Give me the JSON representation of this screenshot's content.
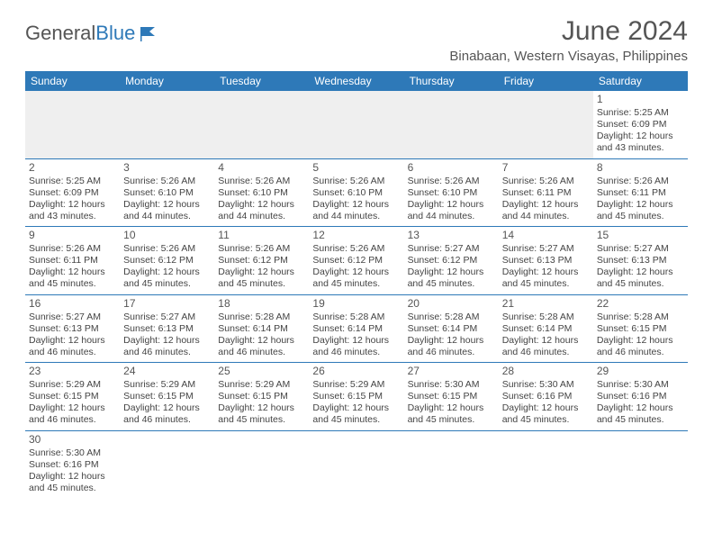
{
  "logo": {
    "text1": "General",
    "text2": "Blue"
  },
  "header": {
    "title": "June 2024",
    "subtitle": "Binabaan, Western Visayas, Philippines"
  },
  "colors": {
    "header_bg": "#2e79b8",
    "header_fg": "#ffffff",
    "text": "#444444",
    "title": "#555555",
    "empty_bg": "#efefef",
    "border": "#2e79b8"
  },
  "weekdays": [
    "Sunday",
    "Monday",
    "Tuesday",
    "Wednesday",
    "Thursday",
    "Friday",
    "Saturday"
  ],
  "cells": [
    [
      null,
      null,
      null,
      null,
      null,
      null,
      {
        "n": "1",
        "sr": "Sunrise: 5:25 AM",
        "ss": "Sunset: 6:09 PM",
        "d1": "Daylight: 12 hours",
        "d2": "and 43 minutes."
      }
    ],
    [
      {
        "n": "2",
        "sr": "Sunrise: 5:25 AM",
        "ss": "Sunset: 6:09 PM",
        "d1": "Daylight: 12 hours",
        "d2": "and 43 minutes."
      },
      {
        "n": "3",
        "sr": "Sunrise: 5:26 AM",
        "ss": "Sunset: 6:10 PM",
        "d1": "Daylight: 12 hours",
        "d2": "and 44 minutes."
      },
      {
        "n": "4",
        "sr": "Sunrise: 5:26 AM",
        "ss": "Sunset: 6:10 PM",
        "d1": "Daylight: 12 hours",
        "d2": "and 44 minutes."
      },
      {
        "n": "5",
        "sr": "Sunrise: 5:26 AM",
        "ss": "Sunset: 6:10 PM",
        "d1": "Daylight: 12 hours",
        "d2": "and 44 minutes."
      },
      {
        "n": "6",
        "sr": "Sunrise: 5:26 AM",
        "ss": "Sunset: 6:10 PM",
        "d1": "Daylight: 12 hours",
        "d2": "and 44 minutes."
      },
      {
        "n": "7",
        "sr": "Sunrise: 5:26 AM",
        "ss": "Sunset: 6:11 PM",
        "d1": "Daylight: 12 hours",
        "d2": "and 44 minutes."
      },
      {
        "n": "8",
        "sr": "Sunrise: 5:26 AM",
        "ss": "Sunset: 6:11 PM",
        "d1": "Daylight: 12 hours",
        "d2": "and 45 minutes."
      }
    ],
    [
      {
        "n": "9",
        "sr": "Sunrise: 5:26 AM",
        "ss": "Sunset: 6:11 PM",
        "d1": "Daylight: 12 hours",
        "d2": "and 45 minutes."
      },
      {
        "n": "10",
        "sr": "Sunrise: 5:26 AM",
        "ss": "Sunset: 6:12 PM",
        "d1": "Daylight: 12 hours",
        "d2": "and 45 minutes."
      },
      {
        "n": "11",
        "sr": "Sunrise: 5:26 AM",
        "ss": "Sunset: 6:12 PM",
        "d1": "Daylight: 12 hours",
        "d2": "and 45 minutes."
      },
      {
        "n": "12",
        "sr": "Sunrise: 5:26 AM",
        "ss": "Sunset: 6:12 PM",
        "d1": "Daylight: 12 hours",
        "d2": "and 45 minutes."
      },
      {
        "n": "13",
        "sr": "Sunrise: 5:27 AM",
        "ss": "Sunset: 6:12 PM",
        "d1": "Daylight: 12 hours",
        "d2": "and 45 minutes."
      },
      {
        "n": "14",
        "sr": "Sunrise: 5:27 AM",
        "ss": "Sunset: 6:13 PM",
        "d1": "Daylight: 12 hours",
        "d2": "and 45 minutes."
      },
      {
        "n": "15",
        "sr": "Sunrise: 5:27 AM",
        "ss": "Sunset: 6:13 PM",
        "d1": "Daylight: 12 hours",
        "d2": "and 45 minutes."
      }
    ],
    [
      {
        "n": "16",
        "sr": "Sunrise: 5:27 AM",
        "ss": "Sunset: 6:13 PM",
        "d1": "Daylight: 12 hours",
        "d2": "and 46 minutes."
      },
      {
        "n": "17",
        "sr": "Sunrise: 5:27 AM",
        "ss": "Sunset: 6:13 PM",
        "d1": "Daylight: 12 hours",
        "d2": "and 46 minutes."
      },
      {
        "n": "18",
        "sr": "Sunrise: 5:28 AM",
        "ss": "Sunset: 6:14 PM",
        "d1": "Daylight: 12 hours",
        "d2": "and 46 minutes."
      },
      {
        "n": "19",
        "sr": "Sunrise: 5:28 AM",
        "ss": "Sunset: 6:14 PM",
        "d1": "Daylight: 12 hours",
        "d2": "and 46 minutes."
      },
      {
        "n": "20",
        "sr": "Sunrise: 5:28 AM",
        "ss": "Sunset: 6:14 PM",
        "d1": "Daylight: 12 hours",
        "d2": "and 46 minutes."
      },
      {
        "n": "21",
        "sr": "Sunrise: 5:28 AM",
        "ss": "Sunset: 6:14 PM",
        "d1": "Daylight: 12 hours",
        "d2": "and 46 minutes."
      },
      {
        "n": "22",
        "sr": "Sunrise: 5:28 AM",
        "ss": "Sunset: 6:15 PM",
        "d1": "Daylight: 12 hours",
        "d2": "and 46 minutes."
      }
    ],
    [
      {
        "n": "23",
        "sr": "Sunrise: 5:29 AM",
        "ss": "Sunset: 6:15 PM",
        "d1": "Daylight: 12 hours",
        "d2": "and 46 minutes."
      },
      {
        "n": "24",
        "sr": "Sunrise: 5:29 AM",
        "ss": "Sunset: 6:15 PM",
        "d1": "Daylight: 12 hours",
        "d2": "and 46 minutes."
      },
      {
        "n": "25",
        "sr": "Sunrise: 5:29 AM",
        "ss": "Sunset: 6:15 PM",
        "d1": "Daylight: 12 hours",
        "d2": "and 45 minutes."
      },
      {
        "n": "26",
        "sr": "Sunrise: 5:29 AM",
        "ss": "Sunset: 6:15 PM",
        "d1": "Daylight: 12 hours",
        "d2": "and 45 minutes."
      },
      {
        "n": "27",
        "sr": "Sunrise: 5:30 AM",
        "ss": "Sunset: 6:15 PM",
        "d1": "Daylight: 12 hours",
        "d2": "and 45 minutes."
      },
      {
        "n": "28",
        "sr": "Sunrise: 5:30 AM",
        "ss": "Sunset: 6:16 PM",
        "d1": "Daylight: 12 hours",
        "d2": "and 45 minutes."
      },
      {
        "n": "29",
        "sr": "Sunrise: 5:30 AM",
        "ss": "Sunset: 6:16 PM",
        "d1": "Daylight: 12 hours",
        "d2": "and 45 minutes."
      }
    ],
    [
      {
        "n": "30",
        "sr": "Sunrise: 5:30 AM",
        "ss": "Sunset: 6:16 PM",
        "d1": "Daylight: 12 hours",
        "d2": "and 45 minutes."
      },
      null,
      null,
      null,
      null,
      null,
      null
    ]
  ]
}
